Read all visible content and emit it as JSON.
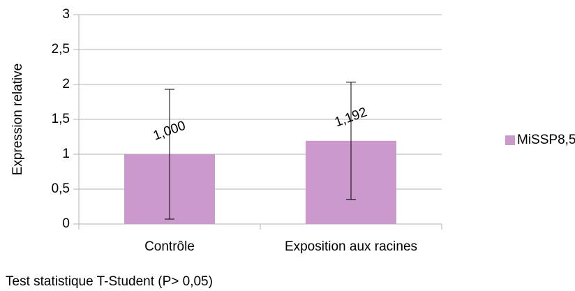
{
  "chart_data": {
    "type": "bar",
    "y_label": "Expression relative",
    "categories": [
      "Contrôle",
      "Exposition aux racines"
    ],
    "series": [
      {
        "name": "MiSSP8,5",
        "color": "#cc99cc",
        "values": [
          1,
          1.192
        ],
        "value_labels": [
          "1,000",
          "1,192"
        ],
        "errors": [
          0.93,
          0.84
        ]
      }
    ],
    "ylim": [
      0,
      3
    ],
    "yticks": [
      0,
      {
        "value": 0.5,
        "label": "0,5"
      },
      1,
      {
        "value": 1.5,
        "label": "1,5"
      },
      2,
      {
        "value": 2.5,
        "label": "2,5"
      },
      3
    ],
    "grid": true,
    "legend": "right",
    "note": "Test statistique T-Student (P> 0,05)"
  }
}
